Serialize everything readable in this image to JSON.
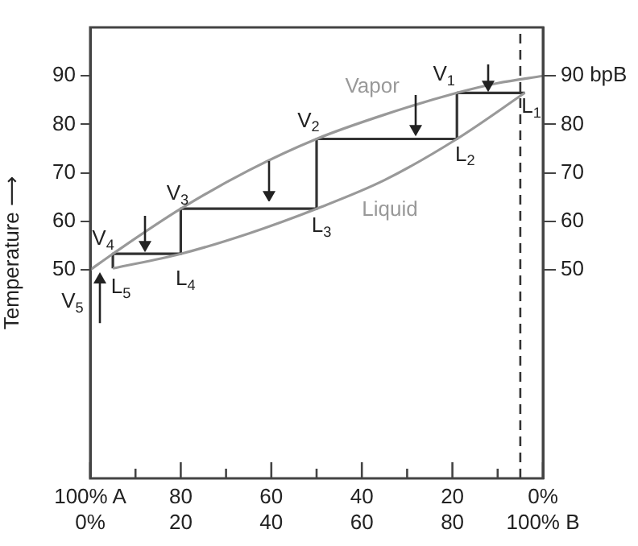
{
  "chart_data": {
    "type": "line",
    "ylabel": "Temperature ⟶",
    "xlim": [
      0,
      100
    ],
    "xticks": [
      {
        "value": 0,
        "label": "0%"
      },
      {
        "value": 10,
        "label": null
      },
      20,
      {
        "value": 30,
        "label": null
      },
      40,
      {
        "value": 50,
        "label": null
      },
      60,
      {
        "value": 70,
        "label": null
      },
      80,
      {
        "value": 90,
        "label": null
      },
      {
        "value": 100,
        "label": "100% B"
      }
    ],
    "x2lim": [
      100,
      0
    ],
    "x2ticks": [
      {
        "value": 100,
        "label": "100% A"
      },
      80,
      60,
      40,
      20,
      {
        "value": 0,
        "label": "0%"
      }
    ],
    "ylim": [
      7,
      100
    ],
    "yticks": [
      50,
      60,
      70,
      80,
      90
    ],
    "y2lim": [
      7,
      100
    ],
    "y2ticks": [
      50,
      60,
      70,
      80,
      {
        "value": 90,
        "label": "90 bpB"
      }
    ],
    "series": [
      {
        "name": "Vapor",
        "color": "#999999",
        "x": [
          0,
          5,
          20,
          35,
          50,
          65,
          81,
          90,
          100
        ],
        "values": [
          50,
          53.3,
          62.6,
          70.5,
          77,
          82,
          86.5,
          88.5,
          90
        ]
      },
      {
        "name": "Liquid",
        "color": "#999999",
        "x": [
          5,
          20,
          35,
          50,
          65,
          81,
          96
        ],
        "values": [
          50.3,
          53.3,
          57.5,
          62.6,
          68.5,
          77,
          86.5
        ]
      },
      {
        "color": "#333333",
        "x": [
          96,
          81,
          81,
          50,
          50,
          20,
          20,
          5,
          5
        ],
        "values": [
          86.5,
          86.5,
          77,
          77,
          62.6,
          62.6,
          53.3,
          53.3,
          50.3
        ]
      }
    ],
    "ref_lines": [
      {
        "axis": "x",
        "value": 95,
        "color": "#333333",
        "line_style": "dashed"
      }
    ],
    "annotations": [
      {
        "text": "V$_{1}$",
        "x": 81,
        "y": 86.5
      },
      {
        "text": "V$_{2}$",
        "x": 50,
        "y": 77
      },
      {
        "text": "V$_{3}$",
        "x": 20,
        "y": 62.6
      },
      {
        "text": "V$_{4}$",
        "x": 5,
        "y": 53.3
      },
      {
        "text": "V$_{5}$",
        "x": 0,
        "y": 50
      },
      {
        "text": "L$_{1}$",
        "x": 96,
        "y": 86.5
      },
      {
        "text": "L$_{2}$",
        "x": 81,
        "y": 77
      },
      {
        "text": "L$_{3}$",
        "x": 50,
        "y": 62.6
      },
      {
        "text": "L$_{4}$",
        "x": 20,
        "y": 53.3
      },
      {
        "text": "L$_{5}$",
        "x": 5,
        "y": 50.3
      }
    ],
    "legend": false,
    "grid": false,
    "marker": "none",
    "line_style": "solid"
  }
}
